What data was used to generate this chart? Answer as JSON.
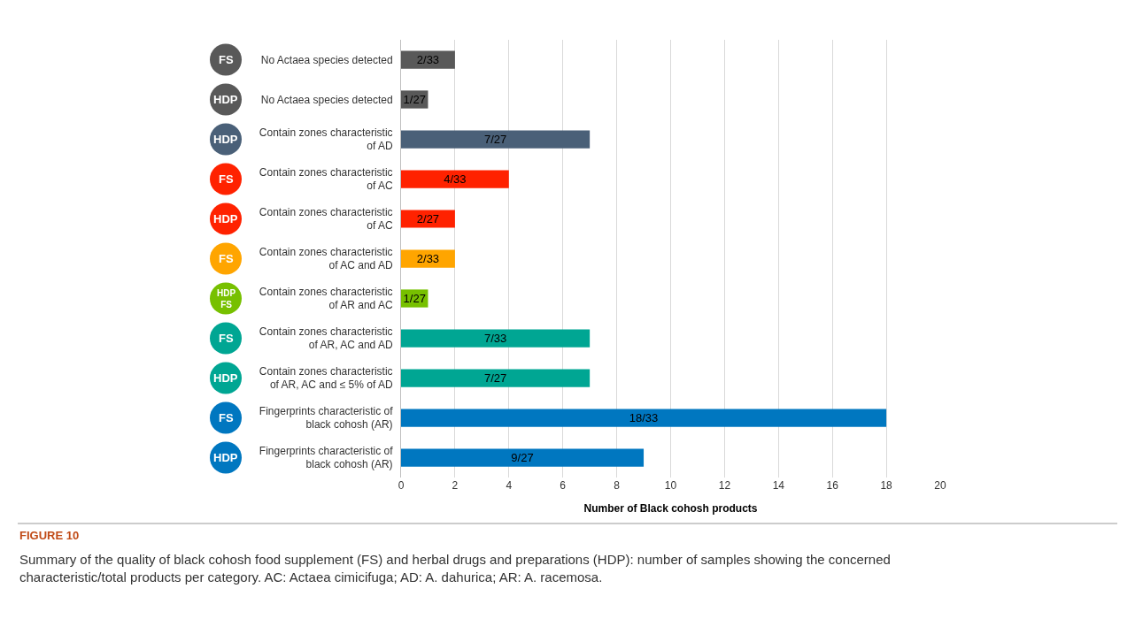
{
  "chart_data": {
    "type": "bar",
    "orientation": "horizontal",
    "categories": [
      "No Actaea species detected",
      "No Actaea species detected",
      "Contain zones characteristic of AD",
      "Contain zones characteristic of AC",
      "Contain zones characteristic of AC",
      "Contain zones characteristic of AC and AD",
      "Contain zones characteristic of AR and AC",
      "Contain zones characteristic of AR, AC and AD",
      "Contain zones characteristic of AR, AC and ≤ 5% of AD",
      "Fingerprints characteristic of black cohosh (AR)",
      "Fingerprints characteristic of black cohosh (AR)"
    ],
    "y2_categories": [
      "FS",
      "HDP",
      "HDP",
      "FS",
      "HDP",
      "FS",
      "HDP\nFS",
      "FS",
      "HDP",
      "FS",
      "HDP"
    ],
    "values": [
      2,
      1,
      7,
      4,
      2,
      2,
      1,
      7,
      7,
      18,
      9
    ],
    "value_labels": [
      "2/33",
      "1/27",
      "7/27",
      "4/33",
      "2/27",
      "2/33",
      "1/27",
      "7/33",
      "7/27",
      "18/33",
      "9/27"
    ],
    "colors": [
      "#595959",
      "#595959",
      "#4a6078",
      "#ff2200",
      "#ff2200",
      "#ffa500",
      "#77c000",
      "#00a693",
      "#00a693",
      "#0077c0",
      "#0077c0"
    ],
    "xlim": [
      0,
      20
    ],
    "xticks": [
      0,
      2,
      4,
      6,
      8,
      10,
      12,
      14,
      16,
      18,
      20
    ],
    "xlabel": "Number of Black cohosh products",
    "grid": "x",
    "legend": false,
    "annotations": [
      "FIGURE 10",
      "Summary of the quality of black cohosh food supplement (FS) and herbal drugs and preparations (HDP): number of samples showing the concerned characteristic/total products per category. AC: Actaea cimicifuga; AD: A. dahurica; AR: A. racemosa."
    ]
  }
}
